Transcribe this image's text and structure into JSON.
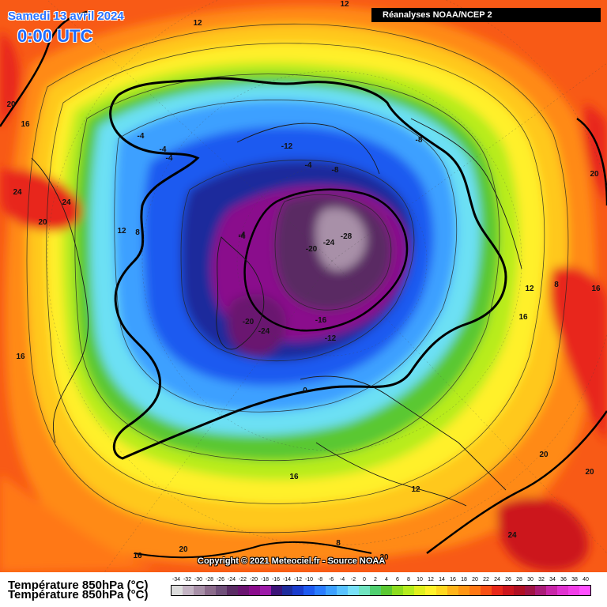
{
  "header": {
    "date": "Samedi 13 avril 2024",
    "time": "0:00 UTC",
    "source": "Réanalyses NOAA/NCEP 2"
  },
  "footer": {
    "copyright": "Copyright © 2021 Meteociel.fr - Source NOAA",
    "variable": "Température 850hPa (°C)"
  },
  "legend": {
    "labels": [
      "-34",
      "-32",
      "-30",
      "-28",
      "-26",
      "-24",
      "-22",
      "-20",
      "-18",
      "-16",
      "-14",
      "-12",
      "-10",
      "-8",
      "-6",
      "-4",
      "-2",
      "0",
      "2",
      "4",
      "6",
      "8",
      "10",
      "12",
      "14",
      "16",
      "18",
      "20",
      "22",
      "24",
      "26",
      "28",
      "30",
      "32",
      "34",
      "36",
      "38",
      "40"
    ],
    "colors": [
      "#dcdcdc",
      "#c4b4c4",
      "#a890a8",
      "#8c6c8c",
      "#70507a",
      "#5a2c64",
      "#6a1470",
      "#8a0c8c",
      "#9c1aa8",
      "#3c1478",
      "#1e2c9c",
      "#1a3ccc",
      "#1e5af0",
      "#2a7cff",
      "#3ca0ff",
      "#58c2ff",
      "#78e0f8",
      "#70e4c0",
      "#50d070",
      "#5ac832",
      "#8cdc1e",
      "#b4ec1e",
      "#e0f01e",
      "#fff22a",
      "#ffd820",
      "#ffb41a",
      "#ff9614",
      "#ff7814",
      "#f85014",
      "#e8281a",
      "#cc161e",
      "#b01024",
      "#a01446",
      "#aa1c78",
      "#c826a8",
      "#e032d0",
      "#f23ee8",
      "#ff50ff"
    ]
  },
  "contour_labels": [
    {
      "text": "12"
    },
    {
      "text": "12"
    },
    {
      "text": "20"
    },
    {
      "text": "16"
    },
    {
      "text": "24"
    },
    {
      "text": "24"
    },
    {
      "text": "20"
    },
    {
      "text": "12"
    },
    {
      "text": "8"
    },
    {
      "text": "-4"
    },
    {
      "text": "-4"
    },
    {
      "text": "-4"
    },
    {
      "text": "-4"
    },
    {
      "text": "-12"
    },
    {
      "text": "-4"
    },
    {
      "text": "-8"
    },
    {
      "text": "-8"
    },
    {
      "text": "20"
    },
    {
      "text": "-4"
    },
    {
      "text": "-24"
    },
    {
      "text": "-28"
    },
    {
      "text": "-20"
    },
    {
      "text": "-20"
    },
    {
      "text": "-24"
    },
    {
      "text": "-16"
    },
    {
      "text": "-12"
    },
    {
      "text": "0"
    },
    {
      "text": "8"
    },
    {
      "text": "12"
    },
    {
      "text": "16"
    },
    {
      "text": "16"
    },
    {
      "text": "16"
    },
    {
      "text": "12"
    },
    {
      "text": "20"
    },
    {
      "text": "20"
    },
    {
      "text": "16"
    },
    {
      "text": "8"
    },
    {
      "text": "16"
    },
    {
      "text": "20"
    },
    {
      "text": "20"
    },
    {
      "text": "24"
    }
  ]
}
